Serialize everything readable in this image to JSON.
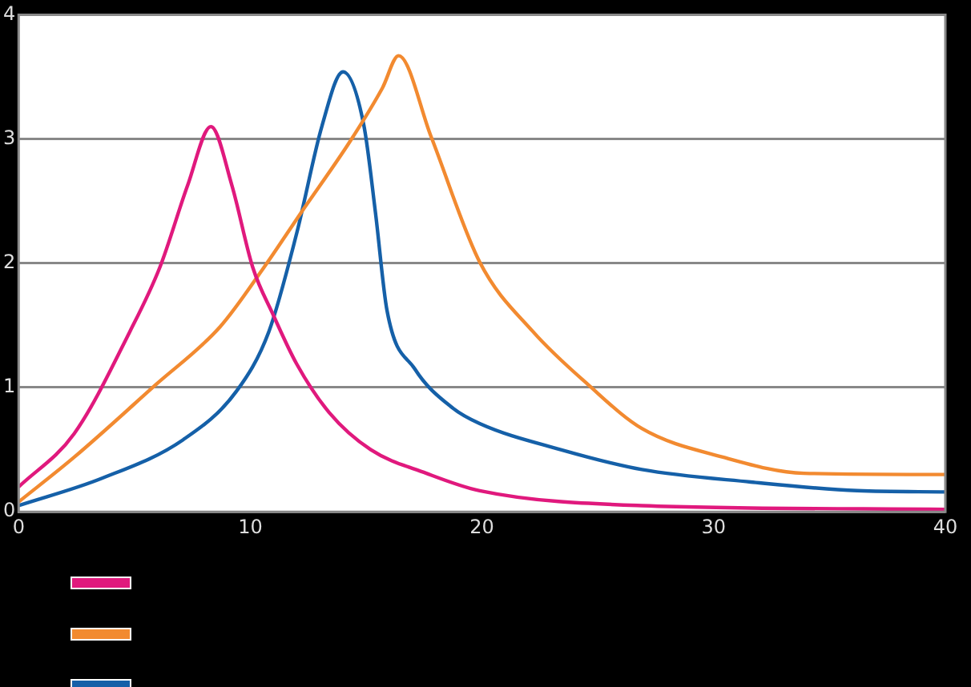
{
  "chart_data": {
    "type": "line",
    "xlim": [
      0,
      40
    ],
    "xticks": [
      0,
      10,
      20,
      30,
      40
    ],
    "ylim": [
      0,
      4
    ],
    "yticks": [
      0,
      1,
      2,
      3,
      4
    ],
    "grid": "y",
    "marker": "none",
    "line_style": "solid",
    "series": [
      {
        "color": "#e0197d",
        "x": [
          0,
          2.4,
          4.8,
          6.1,
          7.3,
          8.3,
          9.2,
          10.1,
          11,
          12,
          13.4,
          15.2,
          17.6,
          19.9,
          26.9,
          40
        ],
        "values": [
          0.2,
          0.63,
          1.45,
          1.97,
          2.63,
          3.1,
          2.63,
          1.97,
          1.58,
          1.19,
          0.8,
          0.5,
          0.31,
          0.17,
          0.05,
          0.02
        ]
      },
      {
        "color": "#f28a30",
        "x": [
          0,
          2.4,
          5.9,
          8.7,
          10.6,
          12.2,
          14.3,
          15.7,
          16.4,
          17.8,
          19.9,
          22.2,
          24.6,
          26.9,
          30.4,
          33.9,
          40
        ],
        "values": [
          0.08,
          0.44,
          1.02,
          1.49,
          1.97,
          2.41,
          2.98,
          3.41,
          3.67,
          3.02,
          2.01,
          1.45,
          1.02,
          0.67,
          0.44,
          0.31,
          0.3
        ]
      },
      {
        "color": "#1560a8",
        "x": [
          0,
          3.6,
          7.1,
          9.4,
          10.8,
          12,
          13.1,
          14,
          14.9,
          15.4,
          15.9,
          17.1,
          18.7,
          19.9,
          23.4,
          26.9,
          31.6,
          36.2,
          40
        ],
        "values": [
          0.05,
          0.27,
          0.58,
          0.97,
          1.45,
          2.24,
          3.11,
          3.54,
          3.11,
          2.41,
          1.62,
          1.15,
          0.84,
          0.71,
          0.5,
          0.34,
          0.24,
          0.17,
          0.16
        ]
      }
    ]
  }
}
